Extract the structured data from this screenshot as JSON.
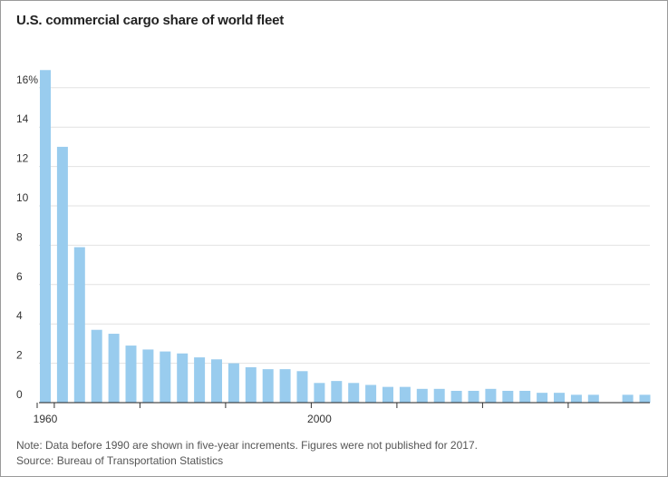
{
  "chart_data": {
    "type": "bar",
    "title": "U.S. commercial cargo share of world fleet",
    "xlabel": "",
    "ylabel": "",
    "ylim": [
      0,
      17
    ],
    "y_ticks": [
      0,
      2,
      4,
      6,
      8,
      10,
      12,
      14,
      16
    ],
    "y_tick_labels": [
      "0",
      "2",
      "4",
      "6",
      "8",
      "10",
      "12",
      "14",
      "16%"
    ],
    "x_tick_labels": [
      {
        "label": "1960",
        "at": 0
      },
      {
        "label": "2000",
        "at": 16
      }
    ],
    "grid": true,
    "colors": {
      "bar": "#99ccee",
      "grid": "#e2e2e2",
      "axis": "#222222"
    },
    "categories": [
      "1960",
      "1965",
      "1970",
      "1975",
      "1980",
      "1985",
      "1990",
      "1991",
      "1992",
      "1993",
      "1994",
      "1995",
      "1996",
      "1997",
      "1998",
      "1999",
      "2000",
      "2001",
      "2002",
      "2003",
      "2004",
      "2005",
      "2006",
      "2007",
      "2008",
      "2009",
      "2010",
      "2011",
      "2012",
      "2013",
      "2014",
      "2015",
      "2016",
      "2017",
      "2018",
      "2019"
    ],
    "values": [
      16.9,
      13.0,
      7.9,
      3.7,
      3.5,
      2.9,
      2.7,
      2.6,
      2.5,
      2.3,
      2.2,
      2.0,
      1.8,
      1.7,
      1.7,
      1.6,
      1.0,
      1.1,
      1.0,
      0.9,
      0.8,
      0.8,
      0.7,
      0.7,
      0.6,
      0.6,
      0.7,
      0.6,
      0.6,
      0.5,
      0.5,
      0.4,
      0.4,
      null,
      0.4,
      0.4
    ]
  },
  "notes": {
    "line1": "Note: Data before 1990 are shown in five-year increments. Figures were not published for 2017.",
    "line2": "Source: Bureau of Transportation Statistics"
  }
}
